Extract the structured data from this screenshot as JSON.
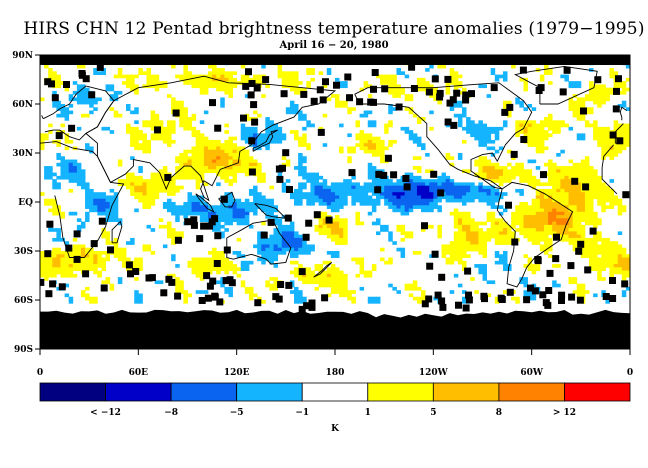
{
  "map": {
    "title": "HIRS CHN 12 Pentad brightness temperature anomalies (1979−1995)",
    "subtitle": "April 16 − 20, 1980",
    "lat_ticks": [
      "90N",
      "60N",
      "30N",
      "EQ",
      "30S",
      "60S",
      "90S"
    ],
    "lon_ticks": [
      "0",
      "60E",
      "120E",
      "180",
      "120W",
      "60W",
      "0"
    ],
    "colorbar": {
      "colors": [
        "#000080",
        "#0000c8",
        "#0a64f0",
        "#14b4ff",
        "#ffffff",
        "#ffff00",
        "#ffbe00",
        "#ff8200",
        "#ff0000"
      ],
      "labels": [
        "< −12",
        "−8",
        "−5",
        "−1",
        "1",
        "5",
        "8",
        "> 12"
      ],
      "units": "K"
    }
  }
}
